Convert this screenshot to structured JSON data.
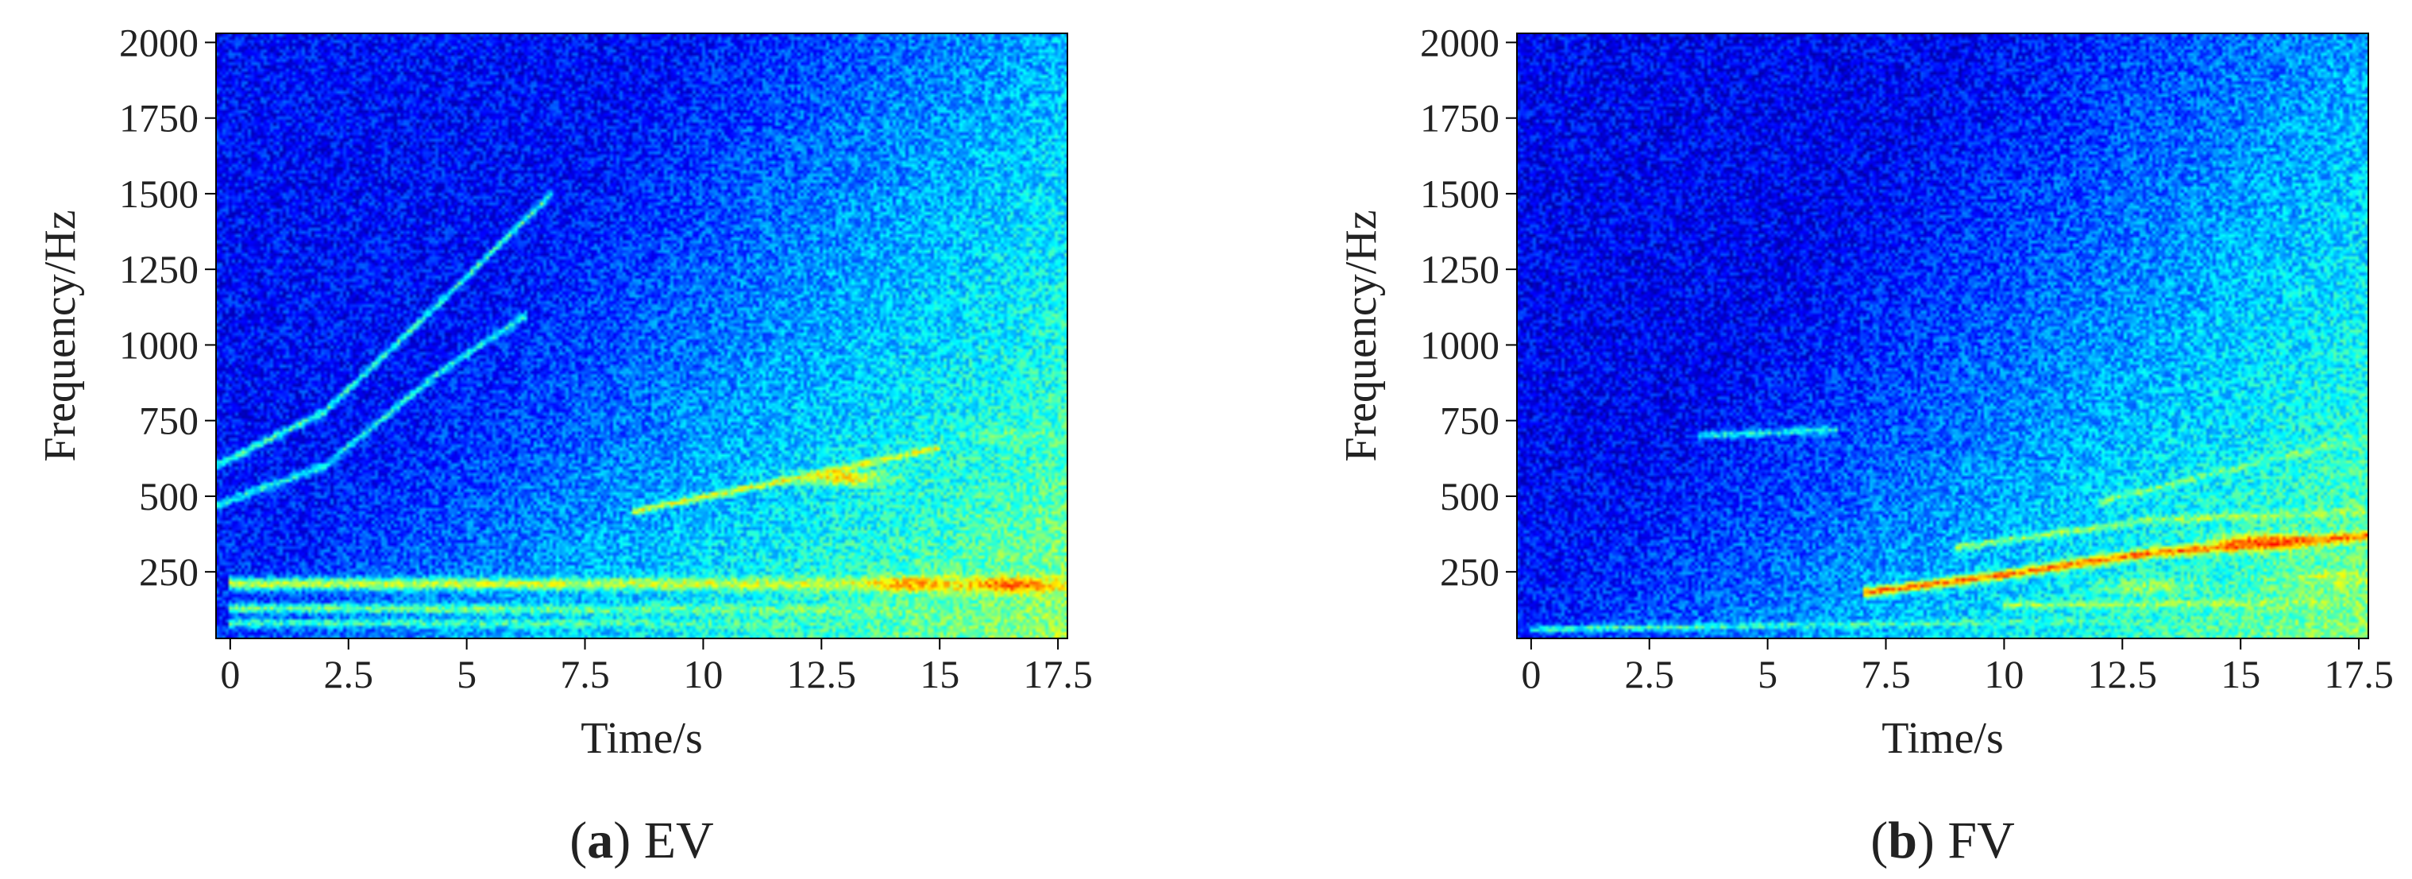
{
  "chart_data": [
    {
      "type": "heatmap",
      "panel_letter": "a",
      "panel_caption": " EV",
      "xlabel": "Time/s",
      "ylabel": "Frequency/Hz",
      "xlim": [
        -0.3,
        17.7
      ],
      "ylim": [
        30,
        2030
      ],
      "x_ticks": [
        0,
        2.5,
        5,
        7.5,
        10,
        12.5,
        15,
        17.5
      ],
      "x_tick_labels": [
        "0",
        "2.5",
        "5",
        "7.5",
        "10",
        "12.5",
        "15",
        "17.5"
      ],
      "y_ticks": [
        250,
        500,
        750,
        1000,
        1250,
        1500,
        1750,
        2000
      ],
      "y_tick_labels": [
        "250",
        "500",
        "750",
        "1000",
        "1250",
        "1500",
        "1750",
        "2000"
      ],
      "colormap": [
        "#00008f",
        "#0000ff",
        "#0080ff",
        "#00ffff",
        "#80ff80",
        "#ffff00",
        "#ff8000",
        "#ff0000"
      ],
      "background_level": 0.15,
      "ridges": [
        {
          "points": [
            [
              -0.3,
              600
            ],
            [
              2,
              780
            ],
            [
              4.5,
              1150
            ],
            [
              6.8,
              1500
            ]
          ],
          "level": 0.5,
          "width_hz": 14
        },
        {
          "points": [
            [
              -0.3,
              470
            ],
            [
              2,
              600
            ],
            [
              4.5,
              920
            ],
            [
              6.3,
              1100
            ]
          ],
          "level": 0.45,
          "width_hz": 14
        },
        {
          "points": [
            [
              8.5,
              450
            ],
            [
              12,
              560
            ],
            [
              15,
              660
            ]
          ],
          "level": 0.68,
          "width_hz": 12
        },
        {
          "points": [
            [
              0,
              210
            ],
            [
              17.7,
              210
            ]
          ],
          "level": 0.66,
          "width_hz": 20
        },
        {
          "points": [
            [
              0,
              130
            ],
            [
              17.7,
              120
            ]
          ],
          "level": 0.55,
          "width_hz": 16
        },
        {
          "points": [
            [
              0,
              80
            ],
            [
              17.7,
              80
            ]
          ],
          "level": 0.5,
          "width_hz": 14
        }
      ],
      "hotspots": [
        {
          "x": 16.5,
          "y": 205,
          "level": 0.9
        },
        {
          "x": 14.5,
          "y": 210,
          "level": 0.8
        },
        {
          "x": 13,
          "y": 560,
          "level": 0.75
        },
        {
          "x": 16.5,
          "y": 700,
          "level": 0.55
        }
      ]
    },
    {
      "type": "heatmap",
      "panel_letter": "b",
      "panel_caption": " FV",
      "xlabel": "Time/s",
      "ylabel": "Frequency/Hz",
      "xlim": [
        -0.3,
        17.7
      ],
      "ylim": [
        30,
        2030
      ],
      "x_ticks": [
        0,
        2.5,
        5,
        7.5,
        10,
        12.5,
        15,
        17.5
      ],
      "x_tick_labels": [
        "0",
        "2.5",
        "5",
        "7.5",
        "10",
        "12.5",
        "15",
        "17.5"
      ],
      "y_ticks": [
        250,
        500,
        750,
        1000,
        1250,
        1500,
        1750,
        2000
      ],
      "y_tick_labels": [
        "250",
        "500",
        "750",
        "1000",
        "1250",
        "1500",
        "1750",
        "2000"
      ],
      "colormap": [
        "#00008f",
        "#0000ff",
        "#0080ff",
        "#00ffff",
        "#80ff80",
        "#ffff00",
        "#ff8000",
        "#ff0000"
      ],
      "background_level": 0.13,
      "ridges": [
        {
          "points": [
            [
              7,
              180
            ],
            [
              10,
              240
            ],
            [
              13,
              310
            ],
            [
              17.7,
              370
            ]
          ],
          "level": 0.88,
          "width_hz": 16
        },
        {
          "points": [
            [
              9,
              330
            ],
            [
              13,
              420
            ],
            [
              17.7,
              450
            ]
          ],
          "level": 0.6,
          "width_hz": 12
        },
        {
          "points": [
            [
              12,
              480
            ],
            [
              17.7,
              700
            ]
          ],
          "level": 0.55,
          "width_hz": 12
        },
        {
          "points": [
            [
              0,
              60
            ],
            [
              9,
              80
            ],
            [
              17.7,
              100
            ]
          ],
          "level": 0.5,
          "width_hz": 10
        },
        {
          "points": [
            [
              10,
              140
            ],
            [
              17.7,
              150
            ]
          ],
          "level": 0.6,
          "width_hz": 12
        },
        {
          "points": [
            [
              3.5,
              700
            ],
            [
              6.5,
              720
            ]
          ],
          "level": 0.45,
          "width_hz": 12
        }
      ],
      "hotspots": [
        {
          "x": 15.5,
          "y": 350,
          "level": 0.92
        },
        {
          "x": 17,
          "y": 230,
          "level": 0.65
        },
        {
          "x": 13,
          "y": 200,
          "level": 0.6
        }
      ]
    }
  ]
}
